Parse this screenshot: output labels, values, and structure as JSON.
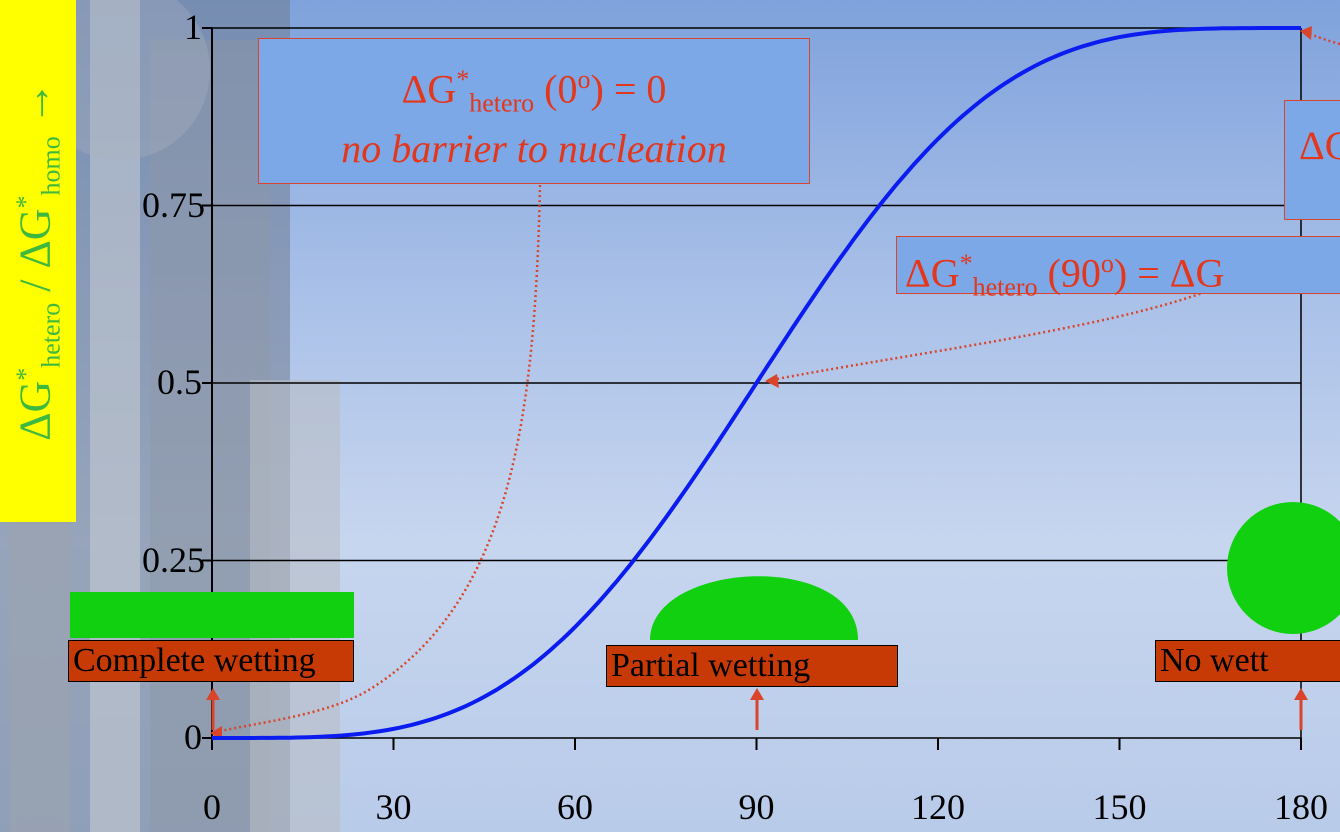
{
  "y_axis_label": {
    "delta": "ΔG",
    "sup1": "*",
    "sub1": "hetero",
    "slash": "/",
    "delta2": "ΔG",
    "sup2": "*",
    "sub2": "homo",
    "arrow": "→"
  },
  "callouts": {
    "zero": {
      "line1_a": "ΔG",
      "line1_sup": "*",
      "line1_sub": "hetero",
      "line1_b": "(0",
      "line1_deg": "o",
      "line1_c": ") = 0",
      "line2": "no barrier to nucleation"
    },
    "ninety": {
      "a": "ΔG",
      "sup": "*",
      "sub": "hetero",
      "b": "(90",
      "deg": "o",
      "c": ") = ΔG"
    },
    "oneeighty": {
      "a": "ΔG"
    }
  },
  "wetting_labels": {
    "complete": "Complete wetting",
    "partial": "Partial wetting",
    "none": "No wett"
  },
  "chart_data": {
    "type": "line",
    "x_ticks": [
      "0",
      "30",
      "60",
      "90",
      "120",
      "150",
      "180"
    ],
    "y_ticks": [
      "0",
      "0.25",
      "0.5",
      "0.75",
      "1"
    ],
    "xlim": [
      0,
      180
    ],
    "ylim": [
      0,
      1
    ],
    "grid": "horizontal",
    "series": [
      {
        "function": "(2 - 3cosθ + cos³θ)/4",
        "x": [
          0,
          10,
          20,
          30,
          40,
          50,
          60,
          70,
          80,
          90,
          100,
          110,
          120,
          130,
          140,
          150,
          160,
          170,
          180
        ],
        "values": [
          0,
          0.0002,
          0.0027,
          0.0131,
          0.0384,
          0.0855,
          0.1563,
          0.2523,
          0.372,
          0.5,
          0.628,
          0.7477,
          0.8438,
          0.9145,
          0.9616,
          0.9869,
          0.9973,
          0.9998,
          1
        ],
        "color": "#0a1cf0"
      }
    ],
    "colors": {
      "curve": "#0a1cf0",
      "callout_text": "#e3361a",
      "droplet": "#10d010",
      "label_bg": "#c83a05"
    }
  }
}
